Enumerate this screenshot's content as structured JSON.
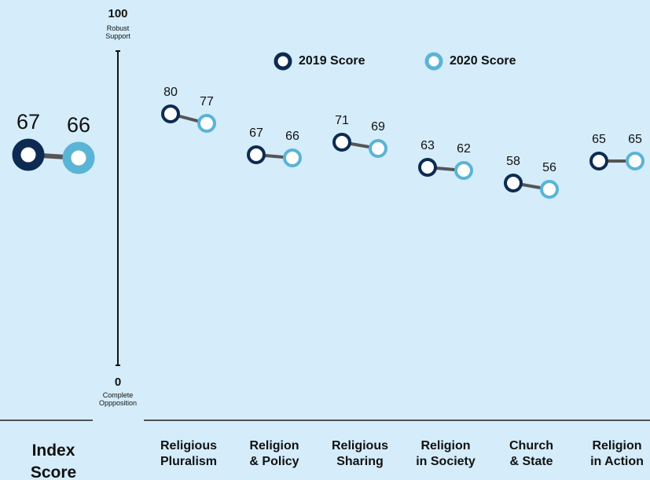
{
  "chart_data": {
    "type": "dumbbell",
    "series": [
      {
        "name": "2019 Score",
        "color": "#0d2b52",
        "values": [
          80,
          67,
          71,
          63,
          58,
          65
        ]
      },
      {
        "name": "2020 Score",
        "color": "#5ab4d6",
        "values": [
          77,
          66,
          69,
          62,
          56,
          65
        ]
      }
    ],
    "categories": [
      "Religious\nPluralism",
      "Religion\n& Policy",
      "Religious\nSharing",
      "Religion\nin Society",
      "Church\n& State",
      "Religion\nin Action"
    ],
    "index": {
      "label": "Index\nScore",
      "values": [
        67,
        66
      ]
    },
    "ylim": [
      0,
      100
    ],
    "yticks": [
      0,
      100
    ],
    "ytick_notes": [
      "Complete\nOppposition",
      "Robust\nSupport"
    ],
    "connector_color": "#555555",
    "grid": false
  }
}
